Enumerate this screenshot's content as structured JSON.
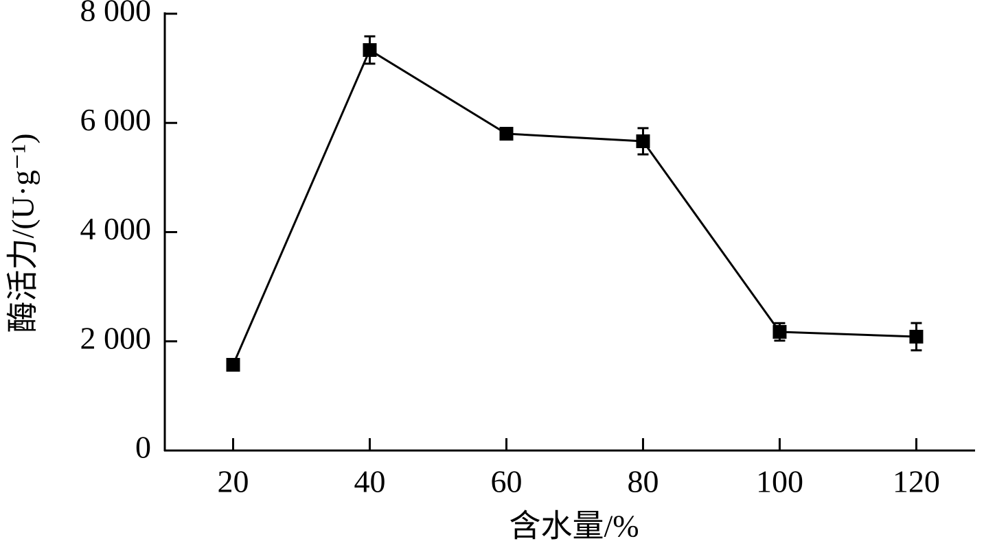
{
  "chart_data": {
    "type": "line",
    "x_label": "含水量/%",
    "y_label": "酶活力/(U·g⁻¹)",
    "x": [
      20,
      40,
      60,
      80,
      100,
      120
    ],
    "series": [
      {
        "color": "#000000",
        "values": [
          1570,
          7335,
          5802,
          5664,
          2173,
          2085
        ],
        "errors": [
          40,
          250,
          90,
          240,
          160,
          250
        ]
      }
    ],
    "xlim": [
      10,
      128.6
    ],
    "xticks": [
      20,
      40,
      60,
      80,
      100,
      120
    ],
    "ylim": [
      0,
      8000
    ],
    "yticks": [
      0,
      {
        "value": 2000,
        "label": "2 000"
      },
      {
        "value": 4000,
        "label": "4 000"
      },
      {
        "value": 6000,
        "label": "6 000"
      },
      {
        "value": 8000,
        "label": "8 000"
      }
    ],
    "grid": false
  }
}
